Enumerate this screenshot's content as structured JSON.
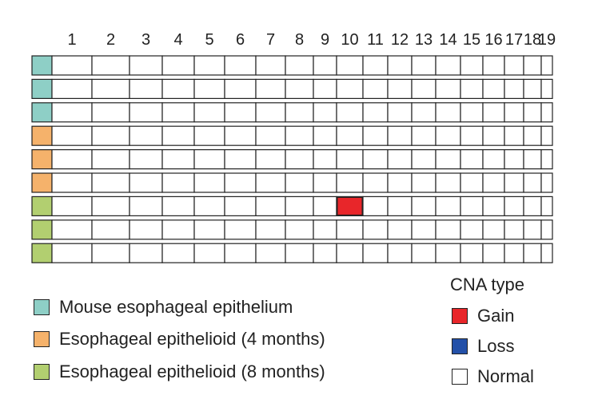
{
  "chart_data": {
    "type": "heatmap",
    "title": "",
    "xlabel": "",
    "ylabel": "",
    "chromosomes": [
      "1",
      "2",
      "3",
      "4",
      "5",
      "6",
      "7",
      "8",
      "9",
      "10",
      "11",
      "12",
      "13",
      "14",
      "15",
      "16",
      "17",
      "18",
      "19"
    ],
    "samples": [
      {
        "group": "Mouse esophageal epithelium"
      },
      {
        "group": "Mouse esophageal epithelium"
      },
      {
        "group": "Mouse esophageal epithelium"
      },
      {
        "group": "Esophageal epithelioid (4 months)"
      },
      {
        "group": "Esophageal epithelioid (4 months)"
      },
      {
        "group": "Esophageal epithelioid (4 months)"
      },
      {
        "group": "Esophageal epithelioid (8 months)"
      },
      {
        "group": "Esophageal epithelioid (8 months)"
      },
      {
        "group": "Esophageal epithelioid (8 months)"
      }
    ],
    "events": [
      {
        "sample_index": 6,
        "chromosome": "10",
        "type": "Gain"
      }
    ],
    "groups": [
      {
        "name": "Mouse esophageal epithelium",
        "color": "#8ecfc6"
      },
      {
        "name": "Esophageal epithelioid (4 months)",
        "color": "#f5b26b"
      },
      {
        "name": "Esophageal epithelioid (8 months)",
        "color": "#b2cf70"
      }
    ],
    "cna_legend": {
      "title": "CNA type",
      "types": [
        {
          "name": "Gain",
          "color": "#e8262a"
        },
        {
          "name": "Loss",
          "color": "#2350a8"
        },
        {
          "name": "Normal",
          "color": "#ffffff"
        }
      ]
    }
  }
}
